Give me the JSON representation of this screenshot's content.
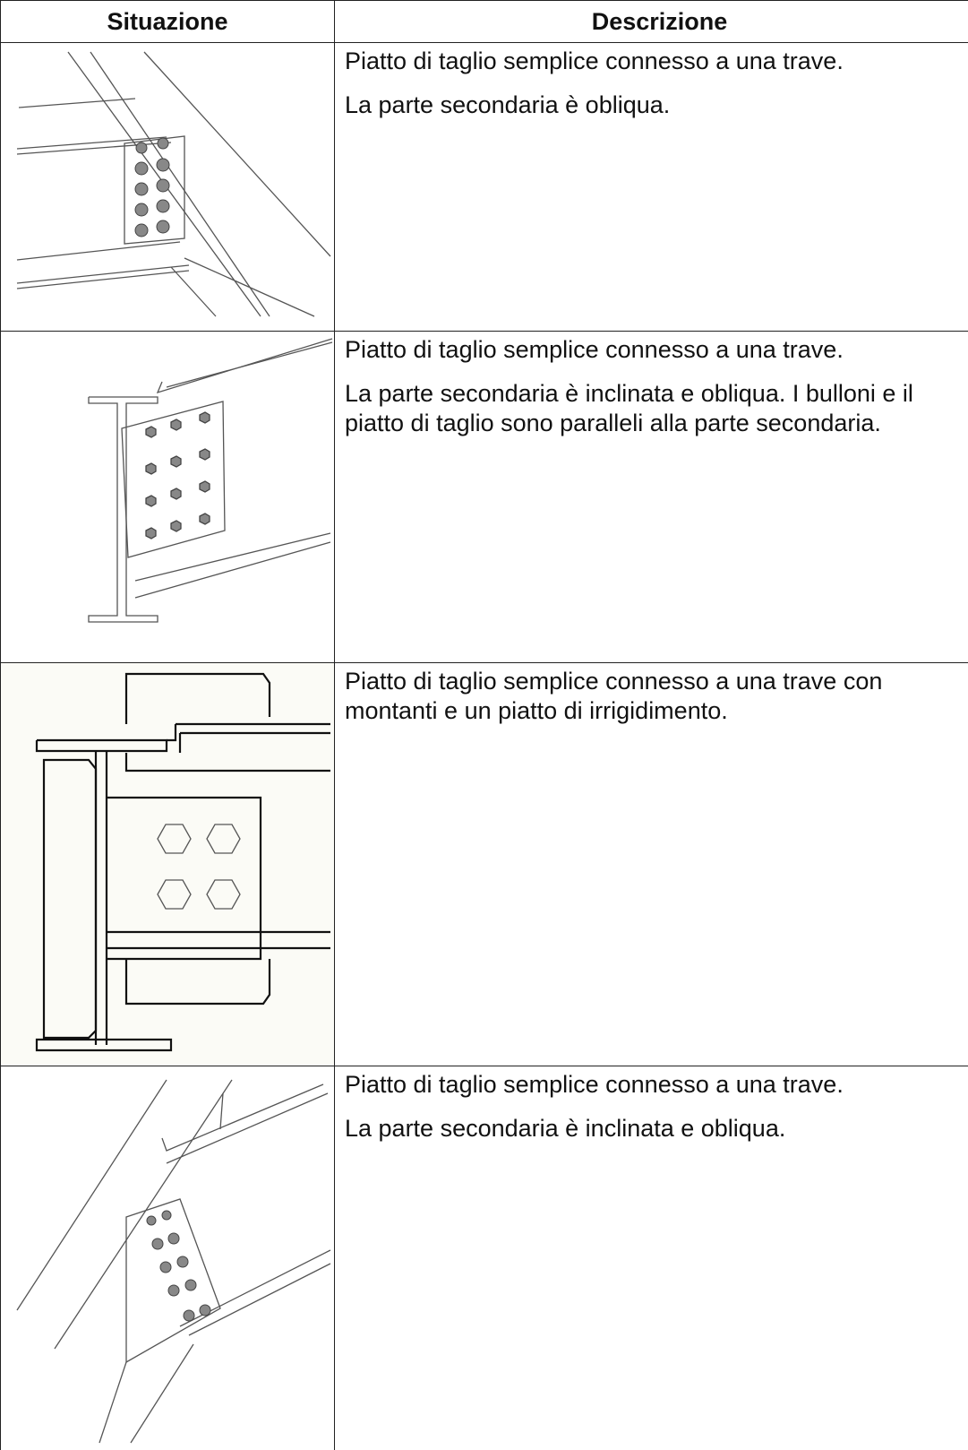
{
  "header": {
    "columns": [
      "Situazione",
      "Descrizione"
    ]
  },
  "rows": [
    {
      "description": [
        "Piatto di taglio semplice connesso a una trave.",
        "La parte secondaria è obliqua."
      ]
    },
    {
      "description": [
        "Piatto di taglio semplice connesso a una trave.",
        "La parte secondaria è inclinata e obliqua. I bulloni e il piatto di taglio sono paralleli alla parte secondaria."
      ]
    },
    {
      "description": [
        "Piatto di taglio semplice connesso a una trave con montanti e un piatto di irrigidimento."
      ]
    },
    {
      "description": [
        "Piatto di taglio semplice connesso a una trave.",
        "La parte secondaria è inclinata e obliqua."
      ]
    }
  ]
}
